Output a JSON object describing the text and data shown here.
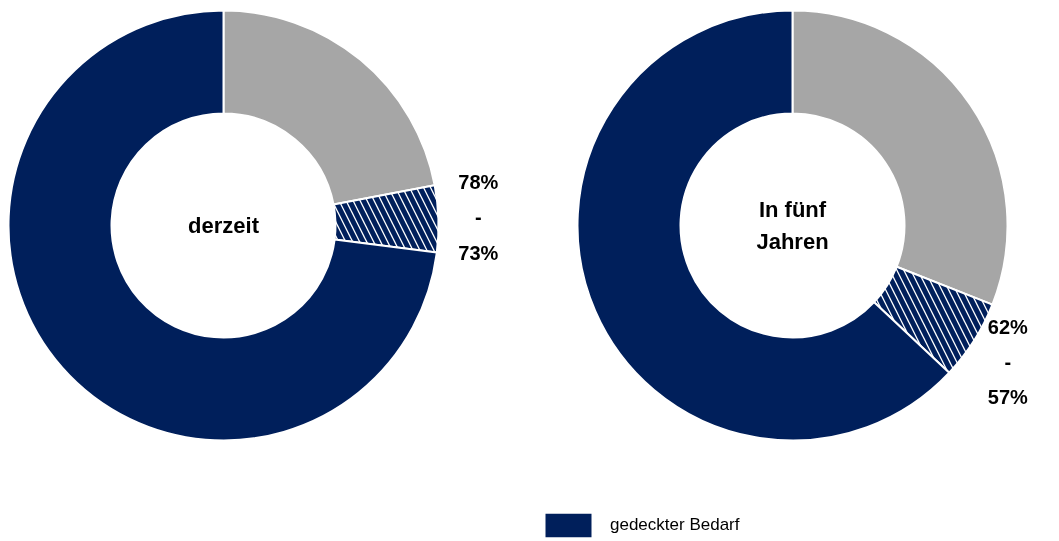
{
  "chart_data": [
    {
      "type": "donut",
      "title": "derzeit",
      "categories": [
        null,
        null,
        null
      ],
      "values": [
        22,
        5,
        73
      ],
      "colors": [
        "#a6a6a6",
        "#ffffff",
        "#001f5b"
      ],
      "annotations": [
        "78%\n-\n73%"
      ]
    },
    {
      "type": "donut",
      "title": "In fünf\nJahren",
      "categories": [
        null,
        null,
        "gedeckter Bedarf"
      ],
      "values": [
        31,
        6,
        63
      ],
      "colors": [
        "#a6a6a6",
        "#ffffff",
        "#001f5b"
      ],
      "annotations": [
        "62%\n-\n57%"
      ],
      "legend": "bottom"
    }
  ]
}
